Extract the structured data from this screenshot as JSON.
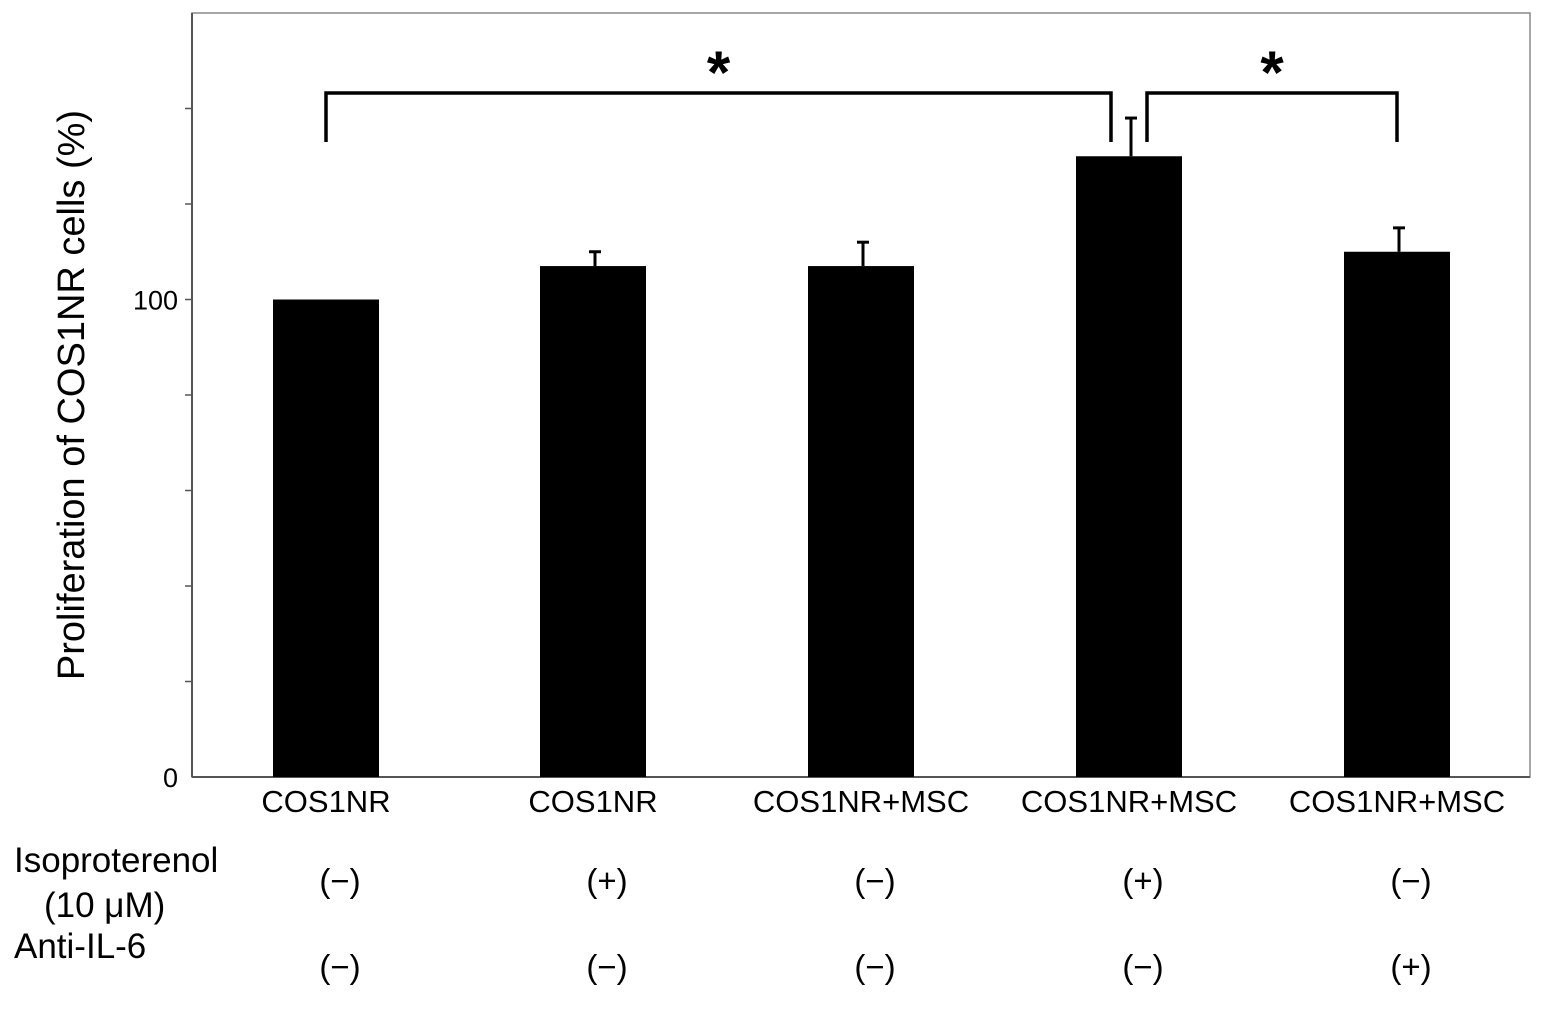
{
  "chart_data": {
    "type": "bar",
    "title": "",
    "xlabel": "",
    "ylabel": "Proliferation of COS1NR cells (%)",
    "ylim": [
      0,
      160
    ],
    "yticks": [
      0,
      100
    ],
    "ytick_labels": [
      "0",
      "100"
    ],
    "grid": false,
    "categories": [
      "COS1NR",
      "COS1NR",
      "COS1NR+MSC",
      "COS1NR+MSC",
      "COS1NR+MSC"
    ],
    "values": [
      100,
      107,
      107,
      130,
      110
    ],
    "error": [
      0,
      3,
      5,
      8,
      5
    ],
    "bar_color": "#000000",
    "conditions": [
      {
        "label_line1": "Isoproterenol",
        "label_line2": "(10 μM)",
        "values": [
          "(−)",
          "(+)",
          "(−)",
          "(+)",
          "(−)"
        ]
      },
      {
        "label_line1": "Anti-IL-6",
        "label_line2": "",
        "values": [
          "(−)",
          "(−)",
          "(−)",
          "(−)",
          "(+)"
        ]
      }
    ],
    "significance": [
      {
        "from": 0,
        "to": 3,
        "label": "*"
      },
      {
        "from": 3,
        "to": 4,
        "label": "*"
      }
    ]
  }
}
